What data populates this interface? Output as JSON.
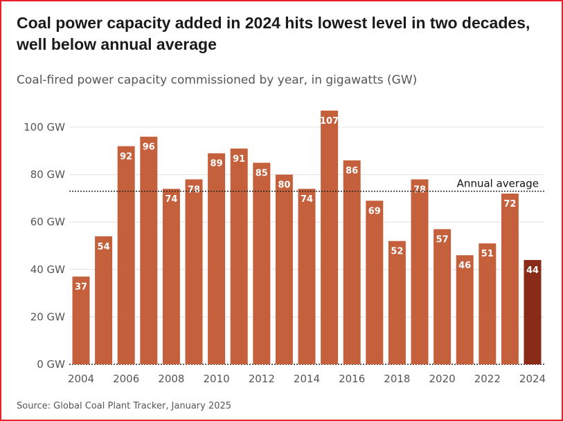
{
  "title": "Coal power capacity added in 2024 hits lowest level in two decades, well below annual average",
  "subtitle": "Coal-fired power capacity commissioned by year, in gigawatts (GW)",
  "source": "Source: Global Coal Plant Tracker, January 2025",
  "chart_data": {
    "type": "bar",
    "categories": [
      "2004",
      "2005",
      "2006",
      "2007",
      "2008",
      "2009",
      "2010",
      "2011",
      "2012",
      "2013",
      "2014",
      "2015",
      "2016",
      "2017",
      "2018",
      "2019",
      "2020",
      "2021",
      "2022",
      "2023",
      "2024"
    ],
    "values": [
      37,
      54,
      92,
      96,
      74,
      78,
      89,
      91,
      85,
      80,
      74,
      107,
      86,
      69,
      52,
      78,
      57,
      46,
      51,
      72,
      44
    ],
    "unit": "GW",
    "ylim": [
      0,
      107
    ],
    "yticks": [
      0,
      20,
      40,
      60,
      80,
      100
    ],
    "ytick_labels": [
      "0 GW",
      "20 GW",
      "40 GW",
      "60 GW",
      "80 GW",
      "100 GW"
    ],
    "xtick_labels": [
      "2004",
      "2006",
      "2008",
      "2010",
      "2012",
      "2014",
      "2016",
      "2018",
      "2020",
      "2022",
      "2024"
    ],
    "annual_average": 73,
    "annotation": "Annual average",
    "grid": true,
    "colors": {
      "bar": "#c4603c",
      "highlight": "#8a2a18",
      "grid": "#e0e0e0"
    }
  }
}
